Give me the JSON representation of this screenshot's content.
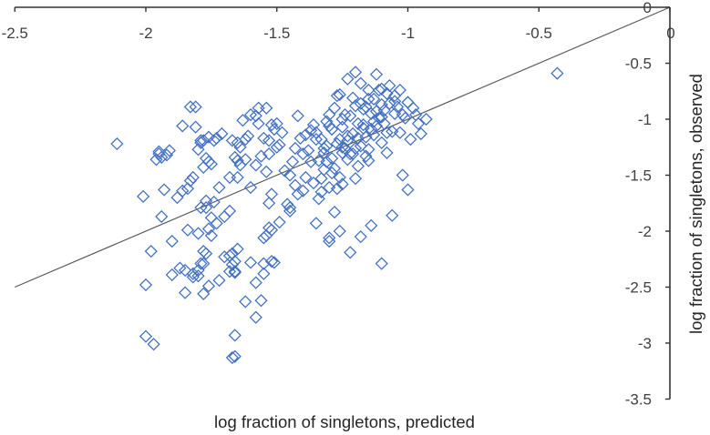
{
  "chart_data": {
    "type": "scatter",
    "title": "",
    "xlabel": "log fraction of singletons, predicted",
    "ylabel": "log fraction of singletons, observed",
    "xlim": [
      -2.5,
      0
    ],
    "ylim": [
      -3.5,
      0
    ],
    "x_ticks": [
      -2.5,
      -2,
      -1.5,
      -1,
      -0.5,
      0
    ],
    "y_ticks": [
      0,
      -0.5,
      -1,
      -1.5,
      -2,
      -2.5,
      -3,
      -3.5
    ],
    "x_tick_labels": [
      "-2.5",
      "-2",
      "-1.5",
      "-1",
      "-0.5",
      "0"
    ],
    "y_tick_labels": [
      "0",
      "-0.5",
      "-1",
      "-1.5",
      "-2",
      "-2.5",
      "-3",
      "-3.5"
    ],
    "grid": false,
    "legend": "none",
    "marker": "diamond-open",
    "marker_color": "#4472c4",
    "line_color": "#595959",
    "trend_line": {
      "slope": 1,
      "intercept": 0,
      "x_range": [
        -2.5,
        0
      ]
    },
    "series": [
      {
        "x": [
          -2.11,
          -2.01,
          -2.0,
          -1.98,
          -1.96,
          -1.95,
          -1.95,
          -1.94,
          -1.94,
          -1.93,
          -1.92,
          -1.91,
          -1.9,
          -1.88,
          -1.86,
          -1.85,
          -1.84,
          -1.84,
          -1.83,
          -1.82,
          -1.82,
          -1.81,
          -1.81,
          -1.8,
          -1.8,
          -1.8,
          -1.79,
          -1.79,
          -1.79,
          -1.78,
          -1.78,
          -1.78,
          -1.77,
          -1.77,
          -1.77,
          -1.76,
          -1.76,
          -1.76,
          -1.75,
          -1.75,
          -1.74,
          -1.73,
          -1.73,
          -1.72,
          -1.71,
          -1.7,
          -1.68,
          -1.68,
          -1.67,
          -1.67,
          -1.66,
          -1.66,
          -1.66,
          -1.65,
          -1.65,
          -1.65,
          -1.64,
          -1.63,
          -1.62,
          -1.62,
          -1.61,
          -1.6,
          -1.6,
          -1.58,
          -1.58,
          -1.57,
          -1.57,
          -1.56,
          -1.55,
          -1.54,
          -1.54,
          -1.53,
          -1.53,
          -1.53,
          -1.52,
          -1.52,
          -1.51,
          -1.51,
          -1.5,
          -1.5,
          -1.49,
          -1.48,
          -1.46,
          -1.45,
          -1.44,
          -1.43,
          -1.42,
          -1.41,
          -1.4,
          -1.39,
          -1.38,
          -1.37,
          -1.36,
          -1.35,
          -1.34,
          -1.33,
          -1.33,
          -1.32,
          -1.32,
          -1.31,
          -1.31,
          -1.3,
          -1.3,
          -1.29,
          -1.29,
          -1.28,
          -1.28,
          -1.27,
          -1.27,
          -1.26,
          -1.26,
          -1.25,
          -1.25,
          -1.24,
          -1.24,
          -1.23,
          -1.23,
          -1.22,
          -1.22,
          -1.21,
          -1.21,
          -1.2,
          -1.2,
          -1.19,
          -1.19,
          -1.18,
          -1.18,
          -1.17,
          -1.17,
          -1.16,
          -1.16,
          -1.15,
          -1.15,
          -1.14,
          -1.14,
          -1.13,
          -1.13,
          -1.12,
          -1.12,
          -1.11,
          -1.11,
          -1.1,
          -1.1,
          -1.09,
          -1.09,
          -1.08,
          -1.08,
          -1.07,
          -1.06,
          -1.05,
          -1.04,
          -1.03,
          -1.02,
          -1.01,
          -1.0,
          -0.99,
          -0.98,
          -0.97,
          -0.96,
          -0.95,
          -0.93,
          -1.62,
          -1.58,
          -1.55,
          -1.52,
          -1.49,
          -1.45,
          -1.42,
          -1.39,
          -1.36,
          -1.34,
          -1.31,
          -1.29,
          -1.27,
          -1.25,
          -1.23,
          -1.21,
          -1.19,
          -1.17,
          -1.15,
          -1.13,
          -1.1,
          -1.08,
          -1.05,
          -1.03,
          -1.0,
          -1.45,
          -1.4,
          -1.35,
          -1.3,
          -1.26,
          -1.22,
          -1.18,
          -1.14,
          -1.1,
          -1.06,
          -1.02,
          -1.35,
          -1.3,
          -1.25,
          -1.2,
          -1.15,
          -1.1,
          -1.05,
          -1.0,
          -1.6,
          -1.55,
          -1.7,
          -1.72,
          -1.68,
          -1.82,
          -1.78,
          -1.75,
          -1.87,
          -1.85,
          -1.9,
          -1.8,
          -1.78,
          -1.77,
          -1.76,
          -1.68,
          -1.67,
          -1.66,
          -1.65,
          -1.58,
          -1.56,
          -1.55,
          -1.54,
          -1.53,
          -1.52,
          -1.33,
          -1.3,
          -1.28,
          -1.25,
          -1.2,
          -1.18,
          -1.83,
          -1.86,
          -1.79,
          -1.74,
          -1.64,
          -1.47,
          -1.43,
          -1.37,
          -1.32,
          -1.26,
          -1.23,
          -1.16,
          -1.12,
          -1.07,
          -0.43,
          -2.0,
          -1.97,
          -1.66,
          -1.66,
          -1.67
        ],
        "y": [
          -1.22,
          -1.69,
          -2.48,
          -2.18,
          -1.36,
          -1.29,
          -1.31,
          -1.34,
          -1.87,
          -1.63,
          -1.32,
          -1.28,
          -2.09,
          -1.7,
          -1.64,
          -2.35,
          -1.62,
          -1.99,
          -1.55,
          -1.52,
          -2.38,
          -0.89,
          -1.07,
          -1.27,
          -2.02,
          -2.4,
          -1.21,
          -1.79,
          -2.29,
          -1.19,
          -1.43,
          -2.56,
          -1.35,
          -1.73,
          -2.2,
          -1.16,
          -1.38,
          -2.49,
          -1.4,
          -1.88,
          -1.19,
          -1.17,
          -1.93,
          -1.61,
          -1.13,
          -1.87,
          -1.52,
          -1.82,
          -1.19,
          -2.2,
          -1.34,
          -2.27,
          -2.37,
          -1.37,
          -1.52,
          -1.21,
          -1.41,
          -1.01,
          -1.36,
          -1.18,
          -1.15,
          -0.96,
          -1.61,
          -0.97,
          -1.41,
          -1.04,
          -0.9,
          -1.33,
          -1.17,
          -0.9,
          -1.47,
          -1.19,
          -1.31,
          -1.75,
          -1.05,
          -1.67,
          -2.28,
          -1.09,
          -1.25,
          -1.04,
          -1.23,
          -1.12,
          -1.76,
          -1.5,
          -1.38,
          -1.26,
          -0.97,
          -1.17,
          -1.31,
          -1.14,
          -1.28,
          -1.38,
          -1.05,
          -1.12,
          -1.37,
          -1.18,
          -1.53,
          -1.3,
          -1.45,
          -1.02,
          -1.24,
          -0.96,
          -1.61,
          -1.09,
          -1.35,
          -0.9,
          -1.44,
          -1.22,
          -0.79,
          -1.18,
          -1.52,
          -1.07,
          -1.3,
          -0.96,
          -1.26,
          -1.19,
          -1.36,
          -0.97,
          -1.31,
          -0.81,
          -1.13,
          -1.26,
          -1.53,
          -1.04,
          -1.17,
          -0.86,
          -1.24,
          -0.91,
          -1.05,
          -1.16,
          -1.33,
          -0.74,
          -1.27,
          -0.95,
          -1.09,
          -0.82,
          -1.14,
          -0.93,
          -1.06,
          -0.74,
          -0.99,
          -0.87,
          -1.21,
          -0.92,
          -1.04,
          -0.77,
          -1.3,
          -0.86,
          -1.11,
          -0.95,
          -0.89,
          -1.12,
          -0.96,
          -0.99,
          -0.85,
          -1.18,
          -0.9,
          -0.96,
          -1.04,
          -1.13,
          -1.0,
          -2.63,
          -2.46,
          -2.06,
          -2.27,
          -1.92,
          -1.79,
          -1.67,
          -1.52,
          -1.57,
          -1.71,
          -1.38,
          -1.48,
          -1.62,
          -1.25,
          -1.15,
          -1.31,
          -1.42,
          -1.08,
          -1.37,
          -1.02,
          -0.98,
          -1.12,
          -0.84,
          -0.74,
          -1.63,
          -1.82,
          -1.64,
          -1.93,
          -2.09,
          -2.0,
          -2.19,
          -2.05,
          -1.95,
          -2.29,
          -1.86,
          -1.5,
          -1.18,
          -1.06,
          -1.0,
          -0.88,
          -0.82,
          -0.73,
          -0.79,
          -0.85,
          -2.28,
          -2.29,
          -2.23,
          -2.44,
          -2.36,
          -2.41,
          -2.29,
          -2.04,
          -2.33,
          -2.55,
          -2.39,
          -2.35,
          -2.18,
          -1.79,
          -1.98,
          -2.22,
          -2.3,
          -2.36,
          -2.16,
          -2.77,
          -2.62,
          -2.38,
          -2.04,
          -1.97,
          -1.99,
          -1.65,
          -2.06,
          -1.83,
          -1.58,
          -0.58,
          -0.68,
          -0.89,
          -1.06,
          -1.19,
          -1.74,
          -1.25,
          -1.46,
          -1.59,
          -1.1,
          -1.26,
          -0.78,
          -0.64,
          -0.89,
          -0.6,
          -0.7,
          -0.59,
          -2.94,
          -3.01,
          -2.93,
          -3.12,
          -3.13
        ]
      }
    ]
  }
}
